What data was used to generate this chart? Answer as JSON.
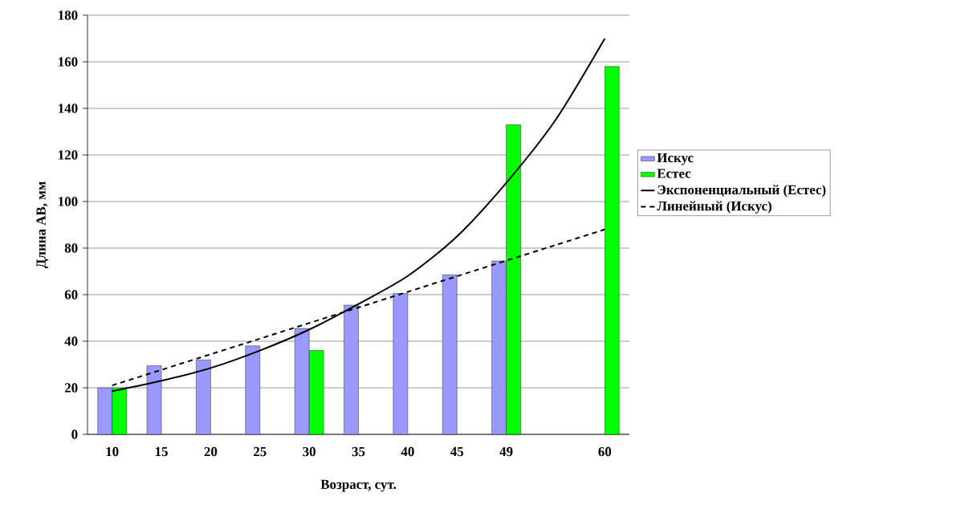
{
  "chart_data": {
    "type": "bar",
    "xlabel": "Возраст, сут.",
    "ylabel": "Длина АВ, мм",
    "categories": [
      "10",
      "15",
      "20",
      "25",
      "30",
      "35",
      "40",
      "45",
      "49",
      null,
      "60"
    ],
    "series": [
      {
        "name": "Искус",
        "color": "#9999ff",
        "values": [
          20,
          29.5,
          32,
          38,
          45.5,
          55.5,
          60.5,
          68.5,
          74.5,
          null,
          null
        ]
      },
      {
        "name": "Естес",
        "color": "#00ff00",
        "values": [
          20,
          null,
          null,
          null,
          36,
          null,
          null,
          null,
          133,
          null,
          158
        ]
      },
      {
        "name": "Экспоненциальный (Естес)",
        "type": "line",
        "color": "#000000",
        "line_style": "solid",
        "values": [
          18.5,
          23,
          28.5,
          36,
          45,
          56,
          68,
          85,
          108,
          135,
          170
        ]
      },
      {
        "name": "Линейный (Искус)",
        "type": "line",
        "color": "#000000",
        "line_style": "dashed",
        "values": [
          21,
          27.7,
          34.4,
          41.1,
          47.8,
          54.5,
          61.2,
          67.9,
          74.6,
          81.3,
          88
        ]
      }
    ],
    "ylim": [
      0,
      180
    ],
    "yticks": [
      0,
      20,
      40,
      60,
      80,
      100,
      120,
      140,
      160,
      180
    ],
    "grid": "y",
    "legend": "right"
  }
}
